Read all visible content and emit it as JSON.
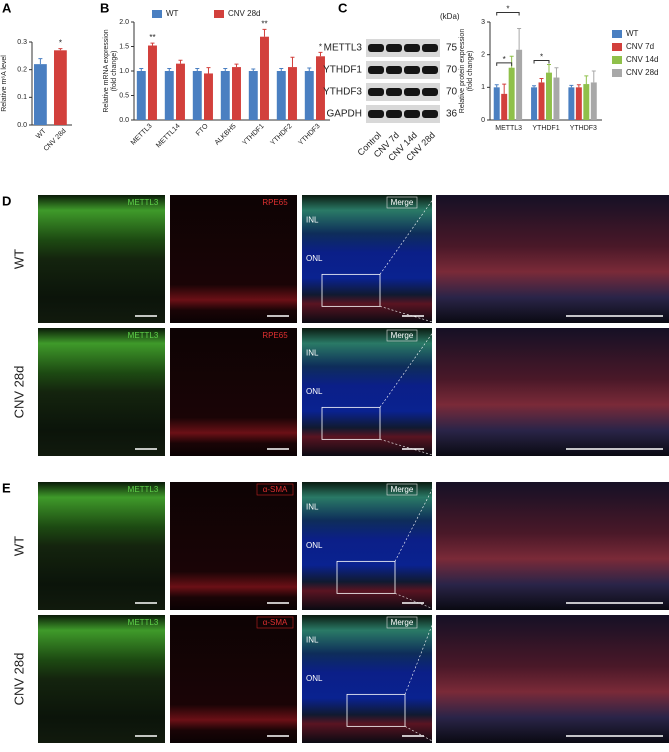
{
  "panels": {
    "a": "A",
    "b": "B",
    "c": "C",
    "d": "D",
    "e": "E"
  },
  "chart_data": [
    {
      "type": "bar",
      "ylabel": "Relative m⁶A level",
      "categories": [
        "WT",
        "CNV 28d"
      ],
      "values": [
        0.22,
        0.27
      ],
      "errors": [
        0.02,
        0.006
      ],
      "colors": [
        "#4a7fc1",
        "#d2403c"
      ],
      "significance": [
        null,
        "*"
      ],
      "ylim": [
        0,
        0.3
      ],
      "yticks": [
        {
          "value": 0,
          "label": "0.0"
        },
        0.1,
        0.2,
        0.3
      ]
    },
    {
      "type": "bar",
      "ylabel": [
        "Relative mRNA expression",
        "(fold change)"
      ],
      "categories": [
        "METTL3",
        "METTL14",
        "FTO",
        "ALKBH5",
        "YTHDF1",
        "YTHDF2",
        "YTHDF3"
      ],
      "series": [
        {
          "name": "WT",
          "color": "#4a7fc1",
          "values": [
            1.0,
            1.0,
            1.0,
            1.0,
            1.0,
            1.0,
            1.0
          ],
          "errors": [
            0.05,
            0.05,
            0.05,
            0.05,
            0.04,
            0.05,
            0.06
          ]
        },
        {
          "name": "CNV 28d",
          "color": "#d2403c",
          "values": [
            1.52,
            1.15,
            0.95,
            1.08,
            1.7,
            1.08,
            1.3
          ],
          "errors": [
            0.05,
            0.07,
            0.12,
            0.06,
            0.15,
            0.2,
            0.08
          ]
        }
      ],
      "significance": [
        "**",
        null,
        null,
        null,
        "**",
        null,
        "*"
      ],
      "ylim": [
        0,
        2
      ],
      "yticks": [
        {
          "value": 0,
          "label": "0.0"
        },
        {
          "value": 0.5,
          "label": "0.5"
        },
        {
          "value": 1,
          "label": "1.0"
        },
        {
          "value": 1.5,
          "label": "1.5"
        },
        {
          "value": 2,
          "label": "2.0"
        }
      ],
      "legend": "top"
    },
    {
      "type": "bar",
      "ylabel": [
        "Relative protein expression",
        "(fold change)"
      ],
      "categories": [
        "METTL3",
        "YTHDF1",
        "YTHDF3"
      ],
      "series": [
        {
          "name": "WT",
          "color": "#4a7fc1",
          "values": [
            1.0,
            1.0,
            1.0
          ],
          "errors": [
            0.08,
            0.05,
            0.06
          ]
        },
        {
          "name": "CNV 7d",
          "color": "#d2403c",
          "values": [
            0.8,
            1.15,
            1.0
          ],
          "errors": [
            0.3,
            0.12,
            0.08
          ]
        },
        {
          "name": "CNV 14d",
          "color": "#8fc04a",
          "values": [
            1.6,
            1.45,
            1.1
          ],
          "errors": [
            0.35,
            0.25,
            0.25
          ]
        },
        {
          "name": "CNV 28d",
          "color": "#a8a8a8",
          "values": [
            2.15,
            1.3,
            1.15
          ],
          "errors": [
            0.65,
            0.3,
            0.35
          ]
        }
      ],
      "brackets": [
        {
          "label": "*",
          "category": "METTL3",
          "from": "WT",
          "to": "CNV 14d"
        },
        {
          "label": "*",
          "category": "METTL3",
          "from": "WT",
          "to": "CNV 28d"
        },
        {
          "label": "*",
          "category": "YTHDF1",
          "from": "WT",
          "to": "CNV 14d"
        }
      ],
      "ylim": [
        0,
        3
      ],
      "yticks": [
        0,
        1,
        2,
        3
      ],
      "legend": "right"
    }
  ],
  "blot": {
    "unit": "(kDa)",
    "rows": [
      {
        "name": "METTL3",
        "kda": "75"
      },
      {
        "name": "YTHDF1",
        "kda": "70"
      },
      {
        "name": "YTHDF3",
        "kda": "70"
      },
      {
        "name": "GAPDH",
        "kda": "36"
      }
    ],
    "lanes": [
      "Control",
      "CNV 7d",
      "CNV 14d",
      "CNV 28d"
    ]
  },
  "micrographs": {
    "d": {
      "rows": [
        "WT",
        "CNV 28d"
      ],
      "channels": [
        "METTL3",
        "RPE65",
        "Merge"
      ],
      "layers": [
        "INL",
        "ONL"
      ]
    },
    "e": {
      "rows": [
        "WT",
        "CNV 28d"
      ],
      "channels": [
        "METTL3",
        "α-SMA",
        "Merge"
      ],
      "layers": [
        "INL",
        "ONL"
      ]
    }
  }
}
